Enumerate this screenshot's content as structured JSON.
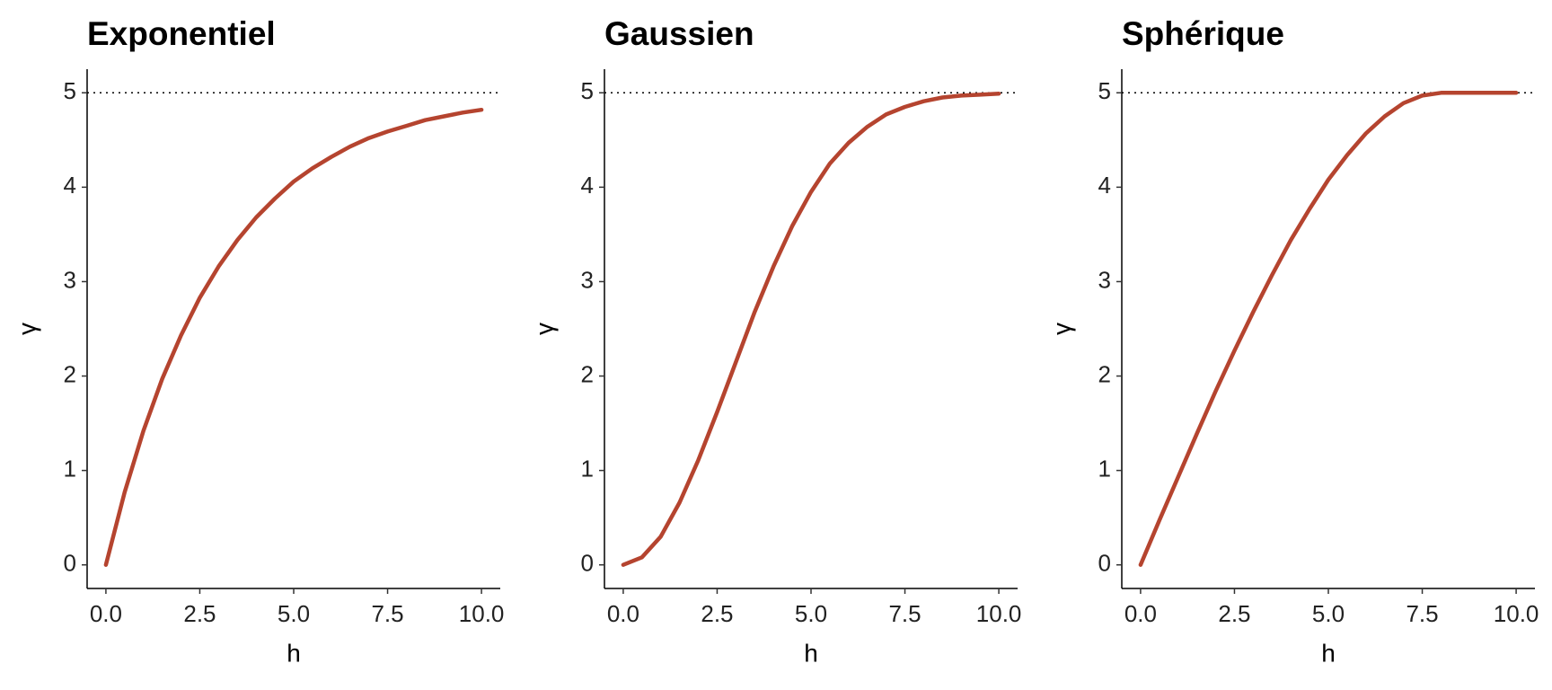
{
  "chart_data": [
    {
      "type": "line",
      "title": "Exponentiel",
      "x_label": "h",
      "y_label": "γ",
      "x": [
        0,
        0.5,
        1,
        1.5,
        2,
        2.5,
        3,
        3.5,
        4,
        4.5,
        5,
        5.5,
        6,
        6.5,
        7,
        7.5,
        8,
        8.5,
        9,
        9.5,
        10
      ],
      "series": [
        {
          "name": "Exponentiel",
          "color": "#b5442f",
          "values": [
            0,
            0.77,
            1.42,
            1.97,
            2.43,
            2.83,
            3.16,
            3.44,
            3.68,
            3.88,
            4.06,
            4.2,
            4.32,
            4.43,
            4.52,
            4.59,
            4.65,
            4.71,
            4.75,
            4.79,
            4.82
          ]
        }
      ],
      "reference_line": 5,
      "xlim": [
        -0.5,
        10.5
      ],
      "ylim": [
        -0.25,
        5.25
      ],
      "xticks": [
        {
          "value": 0,
          "label": "0.0"
        },
        {
          "value": 2.5,
          "label": "2.5"
        },
        {
          "value": 5,
          "label": "5.0"
        },
        {
          "value": 7.5,
          "label": "7.5"
        },
        {
          "value": 10,
          "label": "10.0"
        }
      ],
      "yticks": [
        0,
        1,
        2,
        3,
        4,
        5
      ]
    },
    {
      "type": "line",
      "title": "Gaussien",
      "x_label": "h",
      "y_label": "γ",
      "x": [
        0,
        0.5,
        1,
        1.5,
        2,
        2.5,
        3,
        3.5,
        4,
        4.5,
        5,
        5.5,
        6,
        6.5,
        7,
        7.5,
        8,
        8.5,
        9,
        9.5,
        10
      ],
      "series": [
        {
          "name": "Gaussien",
          "color": "#b5442f",
          "values": [
            0,
            0.08,
            0.3,
            0.66,
            1.11,
            1.62,
            2.15,
            2.68,
            3.16,
            3.59,
            3.95,
            4.25,
            4.47,
            4.64,
            4.77,
            4.85,
            4.91,
            4.95,
            4.97,
            4.98,
            4.99
          ]
        }
      ],
      "reference_line": 5,
      "xlim": [
        -0.5,
        10.5
      ],
      "ylim": [
        -0.25,
        5.25
      ],
      "xticks": [
        {
          "value": 0,
          "label": "0.0"
        },
        {
          "value": 2.5,
          "label": "2.5"
        },
        {
          "value": 5,
          "label": "5.0"
        },
        {
          "value": 7.5,
          "label": "7.5"
        },
        {
          "value": 10,
          "label": "10.0"
        }
      ],
      "yticks": [
        0,
        1,
        2,
        3,
        4,
        5
      ]
    },
    {
      "type": "line",
      "title": "Sphérique",
      "x_label": "h",
      "y_label": "γ",
      "x": [
        0,
        0.5,
        1,
        1.5,
        2,
        2.5,
        3,
        3.5,
        4,
        4.5,
        5,
        5.5,
        6,
        6.5,
        7,
        7.5,
        8,
        8.5,
        9,
        9.5,
        10
      ],
      "series": [
        {
          "name": "Sphérique",
          "color": "#b5442f",
          "values": [
            0,
            0.47,
            0.93,
            1.39,
            1.84,
            2.27,
            2.68,
            3.07,
            3.44,
            3.77,
            4.08,
            4.34,
            4.57,
            4.75,
            4.89,
            4.97,
            5,
            5,
            5,
            5,
            5
          ]
        }
      ],
      "reference_line": 5,
      "xlim": [
        -0.5,
        10.5
      ],
      "ylim": [
        -0.25,
        5.25
      ],
      "xticks": [
        {
          "value": 0,
          "label": "0.0"
        },
        {
          "value": 2.5,
          "label": "2.5"
        },
        {
          "value": 5,
          "label": "5.0"
        },
        {
          "value": 7.5,
          "label": "7.5"
        },
        {
          "value": 10,
          "label": "10.0"
        }
      ],
      "yticks": [
        0,
        1,
        2,
        3,
        4,
        5
      ]
    }
  ]
}
